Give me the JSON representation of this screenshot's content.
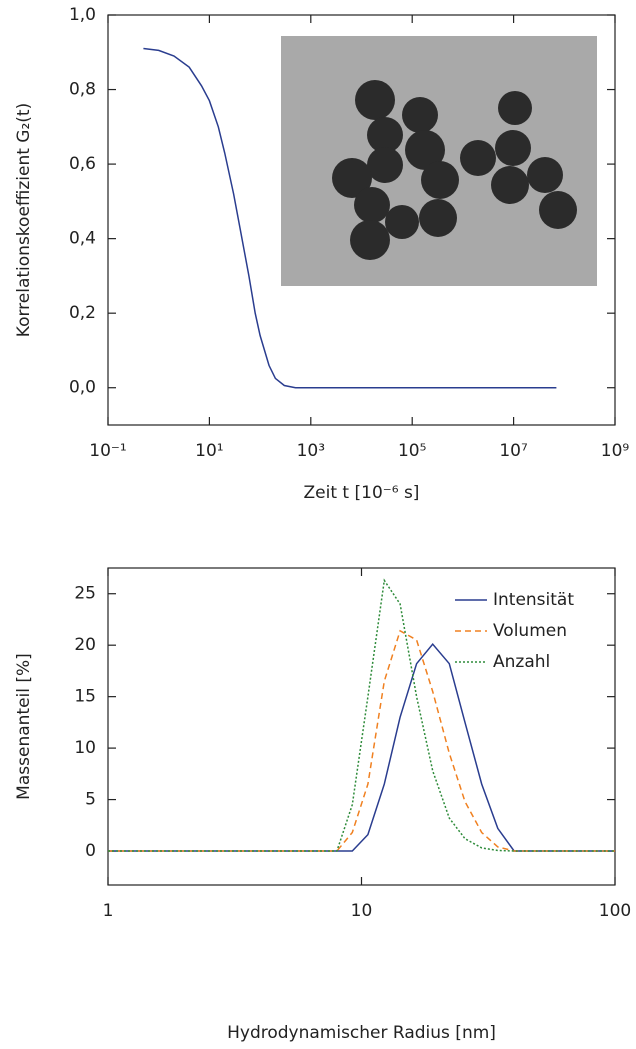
{
  "chart_data": [
    {
      "type": "line",
      "xlabel": "Zeit t [10⁻⁶ s]",
      "ylabel": "Korrelationskoeffizient G₂(t)",
      "xscale": "log",
      "xlim": [
        0.1,
        1000000000
      ],
      "xticks": [
        {
          "value": 0.1,
          "label": "10⁻¹"
        },
        {
          "value": 10,
          "label": "10¹"
        },
        {
          "value": 1000,
          "label": "10³"
        },
        {
          "value": 100000,
          "label": "10⁵"
        },
        {
          "value": 10000000,
          "label": "10⁷"
        },
        {
          "value": 1000000000,
          "label": "10⁹"
        }
      ],
      "ylim": [
        -0.1,
        1.0
      ],
      "yticks": [
        {
          "value": 0,
          "label": "0,0"
        },
        {
          "value": 0.2,
          "label": "0,2"
        },
        {
          "value": 0.4,
          "label": "0,4"
        },
        {
          "value": 0.6,
          "label": "0,6"
        },
        {
          "value": 0.8,
          "label": "0,8"
        },
        {
          "value": 1.0,
          "label": "1,0"
        }
      ],
      "x": [
        0.5,
        1,
        2,
        4,
        7,
        10,
        15,
        20,
        30,
        40,
        60,
        80,
        100,
        150,
        200,
        300,
        500,
        70000000
      ],
      "series": [
        {
          "color": "#2a3d8f",
          "values": [
            0.91,
            0.905,
            0.89,
            0.86,
            0.81,
            0.77,
            0.7,
            0.63,
            0.52,
            0.43,
            0.3,
            0.2,
            0.14,
            0.06,
            0.025,
            0.006,
            0.0,
            0.0
          ]
        }
      ]
    },
    {
      "type": "line",
      "xlabel": "Hydrodynamischer Radius [nm]",
      "ylabel": "Massenanteil [%]",
      "xscale": "log",
      "xlim": [
        1,
        100
      ],
      "xticks": [
        1,
        10,
        100
      ],
      "ylim": [
        -3.3,
        27.5
      ],
      "yticks": [
        0,
        5,
        10,
        15,
        20,
        25
      ],
      "legend": "upper right",
      "x": [
        1,
        8.0,
        9.2,
        10.6,
        12.3,
        14.2,
        16.5,
        19.1,
        22.2,
        25.6,
        29.8,
        34.5,
        40,
        100
      ],
      "series": [
        {
          "name": "Intensität",
          "color": "#2a3d8f",
          "dash": "solid",
          "values": [
            0,
            0,
            0,
            1.6,
            6.5,
            13,
            18.2,
            20.1,
            18.2,
            12.5,
            6.5,
            2.2,
            0,
            0
          ]
        },
        {
          "name": "Volumen",
          "color": "#f08020",
          "dash": "dashed",
          "values": [
            0,
            0,
            1.8,
            6.5,
            16.5,
            21.4,
            20.5,
            15.5,
            9.5,
            4.8,
            1.8,
            0.4,
            0,
            0
          ]
        },
        {
          "name": "Anzahl",
          "color": "#2e8b3a",
          "dash": "dotted",
          "values": [
            0,
            0,
            4.5,
            15,
            26.3,
            24,
            15,
            7.8,
            3.2,
            1.2,
            0.3,
            0.05,
            0,
            0
          ]
        }
      ]
    }
  ]
}
